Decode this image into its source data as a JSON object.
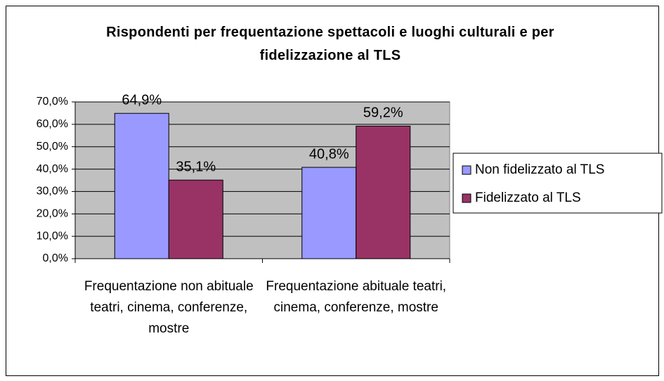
{
  "chart_data": {
    "type": "bar",
    "title": "Rispondenti per frequentazione spettacoli e luoghi culturali e per fidelizzazione al TLS",
    "categories": [
      "Frequentazione non abituale teatri, cinema, conferenze, mostre",
      "Frequentazione abituale teatri, cinema, conferenze, mostre"
    ],
    "series": [
      {
        "name": "Non fidelizzato al TLS",
        "color": "#9999ff",
        "values": [
          64.9,
          40.8
        ],
        "value_labels": [
          "64,9%",
          "40,8%"
        ]
      },
      {
        "name": "Fidelizzato al TLS",
        "color": "#993366",
        "values": [
          35.1,
          59.2
        ],
        "value_labels": [
          "35,1%",
          "59,2%"
        ]
      }
    ],
    "ylim": [
      0,
      70
    ],
    "yticks": [
      {
        "value": 0,
        "label": "0,0%"
      },
      {
        "value": 10,
        "label": "10,0%"
      },
      {
        "value": 20,
        "label": "20,0%"
      },
      {
        "value": 30,
        "label": "30,0%"
      },
      {
        "value": 40,
        "label": "40,0%"
      },
      {
        "value": 50,
        "label": "50,0%"
      },
      {
        "value": 60,
        "label": "60,0%"
      },
      {
        "value": 70,
        "label": "70,0%"
      }
    ],
    "grid": true,
    "plot_background": "#c0c0c0",
    "legend": "right"
  }
}
